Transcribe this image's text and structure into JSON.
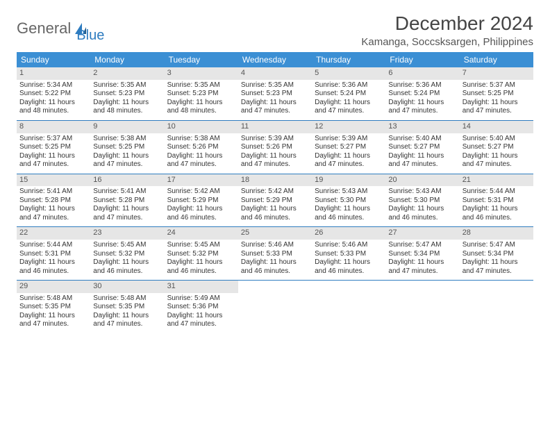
{
  "logo": {
    "text1": "General",
    "text2": "Blue"
  },
  "title": "December 2024",
  "location": "Kamanga, Soccsksargen, Philippines",
  "header_bg": "#3b8fd4",
  "accent": "#2e7cc0",
  "dayname_bg": "#e6e6e6",
  "weekdays": [
    "Sunday",
    "Monday",
    "Tuesday",
    "Wednesday",
    "Thursday",
    "Friday",
    "Saturday"
  ],
  "days": [
    {
      "n": "1",
      "sr": "5:34 AM",
      "ss": "5:22 PM",
      "dl": "11 hours and 48 minutes."
    },
    {
      "n": "2",
      "sr": "5:35 AM",
      "ss": "5:23 PM",
      "dl": "11 hours and 48 minutes."
    },
    {
      "n": "3",
      "sr": "5:35 AM",
      "ss": "5:23 PM",
      "dl": "11 hours and 48 minutes."
    },
    {
      "n": "4",
      "sr": "5:35 AM",
      "ss": "5:23 PM",
      "dl": "11 hours and 47 minutes."
    },
    {
      "n": "5",
      "sr": "5:36 AM",
      "ss": "5:24 PM",
      "dl": "11 hours and 47 minutes."
    },
    {
      "n": "6",
      "sr": "5:36 AM",
      "ss": "5:24 PM",
      "dl": "11 hours and 47 minutes."
    },
    {
      "n": "7",
      "sr": "5:37 AM",
      "ss": "5:25 PM",
      "dl": "11 hours and 47 minutes."
    },
    {
      "n": "8",
      "sr": "5:37 AM",
      "ss": "5:25 PM",
      "dl": "11 hours and 47 minutes."
    },
    {
      "n": "9",
      "sr": "5:38 AM",
      "ss": "5:25 PM",
      "dl": "11 hours and 47 minutes."
    },
    {
      "n": "10",
      "sr": "5:38 AM",
      "ss": "5:26 PM",
      "dl": "11 hours and 47 minutes."
    },
    {
      "n": "11",
      "sr": "5:39 AM",
      "ss": "5:26 PM",
      "dl": "11 hours and 47 minutes."
    },
    {
      "n": "12",
      "sr": "5:39 AM",
      "ss": "5:27 PM",
      "dl": "11 hours and 47 minutes."
    },
    {
      "n": "13",
      "sr": "5:40 AM",
      "ss": "5:27 PM",
      "dl": "11 hours and 47 minutes."
    },
    {
      "n": "14",
      "sr": "5:40 AM",
      "ss": "5:27 PM",
      "dl": "11 hours and 47 minutes."
    },
    {
      "n": "15",
      "sr": "5:41 AM",
      "ss": "5:28 PM",
      "dl": "11 hours and 47 minutes."
    },
    {
      "n": "16",
      "sr": "5:41 AM",
      "ss": "5:28 PM",
      "dl": "11 hours and 47 minutes."
    },
    {
      "n": "17",
      "sr": "5:42 AM",
      "ss": "5:29 PM",
      "dl": "11 hours and 46 minutes."
    },
    {
      "n": "18",
      "sr": "5:42 AM",
      "ss": "5:29 PM",
      "dl": "11 hours and 46 minutes."
    },
    {
      "n": "19",
      "sr": "5:43 AM",
      "ss": "5:30 PM",
      "dl": "11 hours and 46 minutes."
    },
    {
      "n": "20",
      "sr": "5:43 AM",
      "ss": "5:30 PM",
      "dl": "11 hours and 46 minutes."
    },
    {
      "n": "21",
      "sr": "5:44 AM",
      "ss": "5:31 PM",
      "dl": "11 hours and 46 minutes."
    },
    {
      "n": "22",
      "sr": "5:44 AM",
      "ss": "5:31 PM",
      "dl": "11 hours and 46 minutes."
    },
    {
      "n": "23",
      "sr": "5:45 AM",
      "ss": "5:32 PM",
      "dl": "11 hours and 46 minutes."
    },
    {
      "n": "24",
      "sr": "5:45 AM",
      "ss": "5:32 PM",
      "dl": "11 hours and 46 minutes."
    },
    {
      "n": "25",
      "sr": "5:46 AM",
      "ss": "5:33 PM",
      "dl": "11 hours and 46 minutes."
    },
    {
      "n": "26",
      "sr": "5:46 AM",
      "ss": "5:33 PM",
      "dl": "11 hours and 46 minutes."
    },
    {
      "n": "27",
      "sr": "5:47 AM",
      "ss": "5:34 PM",
      "dl": "11 hours and 47 minutes."
    },
    {
      "n": "28",
      "sr": "5:47 AM",
      "ss": "5:34 PM",
      "dl": "11 hours and 47 minutes."
    },
    {
      "n": "29",
      "sr": "5:48 AM",
      "ss": "5:35 PM",
      "dl": "11 hours and 47 minutes."
    },
    {
      "n": "30",
      "sr": "5:48 AM",
      "ss": "5:35 PM",
      "dl": "11 hours and 47 minutes."
    },
    {
      "n": "31",
      "sr": "5:49 AM",
      "ss": "5:36 PM",
      "dl": "11 hours and 47 minutes."
    }
  ],
  "labels": {
    "sunrise": "Sunrise: ",
    "sunset": "Sunset: ",
    "daylight": "Daylight: "
  }
}
